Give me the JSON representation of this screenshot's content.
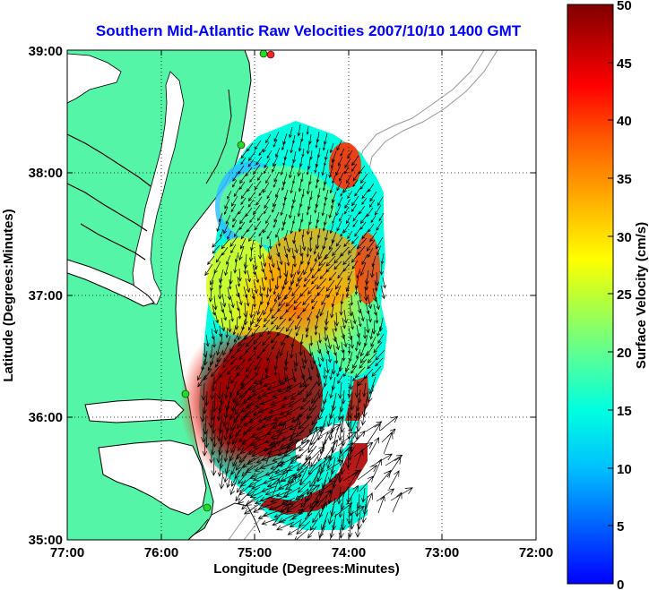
{
  "title": "Southern Mid-Atlantic Raw Velocities 2007/10/10 1400 GMT",
  "xlabel": "Longitude (Degrees:Minutes)",
  "ylabel": "Latitude (Degrees:Minutes)",
  "x_ticks": [
    "77:00",
    "76:00",
    "75:00",
    "74:00",
    "73:00",
    "72:00"
  ],
  "y_ticks": [
    "39:00",
    "38:00",
    "37:00",
    "36:00",
    "35:00"
  ],
  "colorbar": {
    "label": "Surface Velocity (cm/s)",
    "ticks": [
      "50",
      "45",
      "40",
      "35",
      "30",
      "25",
      "20",
      "15",
      "10",
      "5",
      "0"
    ],
    "min": 0,
    "max": 50,
    "colors": [
      "#0000ff",
      "#00a0ff",
      "#00ffff",
      "#60ff90",
      "#ffff00",
      "#ff9900",
      "#ff0000",
      "#800000"
    ]
  },
  "colors": {
    "land": "#55f5a8",
    "ocean": "#ffffff",
    "title": "#0000ff",
    "station": "#22dd22",
    "station_alt": "#ff2222"
  },
  "chart_data": {
    "type": "heatmap",
    "title": "Southern Mid-Atlantic Raw Velocities 2007/10/10 1400 GMT",
    "xlabel": "Longitude (Degrees:Minutes)",
    "ylabel": "Latitude (Degrees:Minutes)",
    "xlim": [
      -77,
      -72
    ],
    "ylim": [
      35,
      39
    ],
    "grid": true,
    "value_range": [
      0,
      50
    ],
    "units": "cm/s",
    "velocity_samples": [
      {
        "lon": -74.9,
        "lat": 38.2,
        "speed": 12
      },
      {
        "lon": -74.5,
        "lat": 38.0,
        "speed": 22
      },
      {
        "lon": -74.1,
        "lat": 38.0,
        "speed": 42
      },
      {
        "lon": -75.2,
        "lat": 37.6,
        "speed": 16
      },
      {
        "lon": -74.6,
        "lat": 37.5,
        "speed": 26
      },
      {
        "lon": -73.9,
        "lat": 37.3,
        "speed": 44
      },
      {
        "lon": -75.3,
        "lat": 37.0,
        "speed": 30
      },
      {
        "lon": -74.7,
        "lat": 36.9,
        "speed": 35
      },
      {
        "lon": -74.0,
        "lat": 36.8,
        "speed": 20
      },
      {
        "lon": -75.3,
        "lat": 36.4,
        "speed": 46
      },
      {
        "lon": -74.8,
        "lat": 36.3,
        "speed": 42
      },
      {
        "lon": -74.2,
        "lat": 36.5,
        "speed": 22
      },
      {
        "lon": -75.1,
        "lat": 35.9,
        "speed": 48
      },
      {
        "lon": -74.5,
        "lat": 35.7,
        "speed": 38
      },
      {
        "lon": -74.6,
        "lat": 35.2,
        "speed": 47
      },
      {
        "lon": -73.9,
        "lat": 35.6,
        "speed": 45
      }
    ],
    "stations": [
      {
        "name": "",
        "lon": -74.85,
        "lat": 38.95
      },
      {
        "name": "",
        "lon": -74.9,
        "lat": 38.95
      },
      {
        "name": "",
        "lon": -75.15,
        "lat": 38.22
      },
      {
        "name": "",
        "lon": -75.85,
        "lat": 36.17
      },
      {
        "name": "",
        "lon": -75.5,
        "lat": 35.27
      }
    ]
  }
}
